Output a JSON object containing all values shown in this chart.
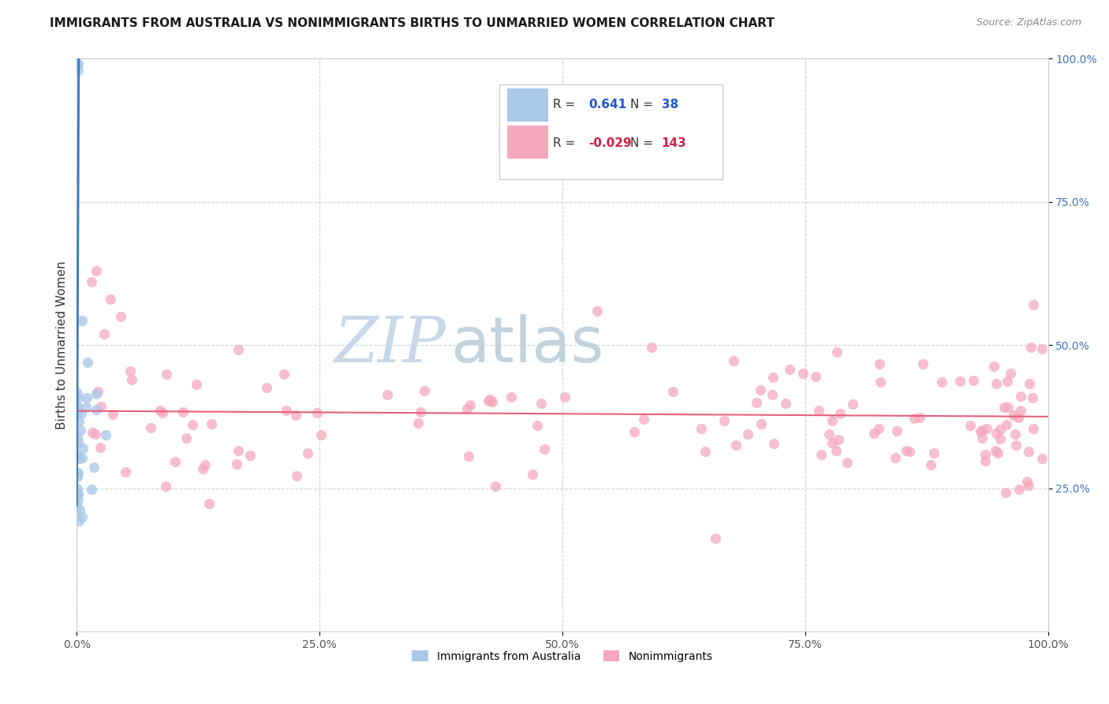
{
  "title": "IMMIGRANTS FROM AUSTRALIA VS NONIMMIGRANTS BIRTHS TO UNMARRIED WOMEN CORRELATION CHART",
  "source": "Source: ZipAtlas.com",
  "ylabel": "Births to Unmarried Women",
  "xlim": [
    0,
    1.0
  ],
  "ylim": [
    0,
    1.0
  ],
  "xtick_labels": [
    "0.0%",
    "25.0%",
    "50.0%",
    "75.0%",
    "100.0%"
  ],
  "xtick_vals": [
    0.0,
    0.25,
    0.5,
    0.75,
    1.0
  ],
  "ytick_labels": [
    "25.0%",
    "50.0%",
    "75.0%",
    "100.0%"
  ],
  "ytick_vals": [
    0.25,
    0.5,
    0.75,
    1.0
  ],
  "blue_R": 0.641,
  "blue_N": 38,
  "pink_R": -0.029,
  "pink_N": 143,
  "blue_color": "#aac8e8",
  "pink_color": "#f4a8be",
  "blue_line_color": "#3a7abf",
  "pink_line_color": "#e8607a",
  "watermark_zip_color": "#c8d8e8",
  "watermark_atlas_color": "#b8ccd8",
  "legend_label_blue": "Immigrants from Australia",
  "legend_label_pink": "Nonimmigrants",
  "blue_seed": 42,
  "pink_seed": 77,
  "title_fontsize": 11,
  "source_fontsize": 9,
  "tick_fontsize": 10,
  "ylabel_fontsize": 11,
  "ytick_color": "#4472c4",
  "xtick_color": "#555555"
}
